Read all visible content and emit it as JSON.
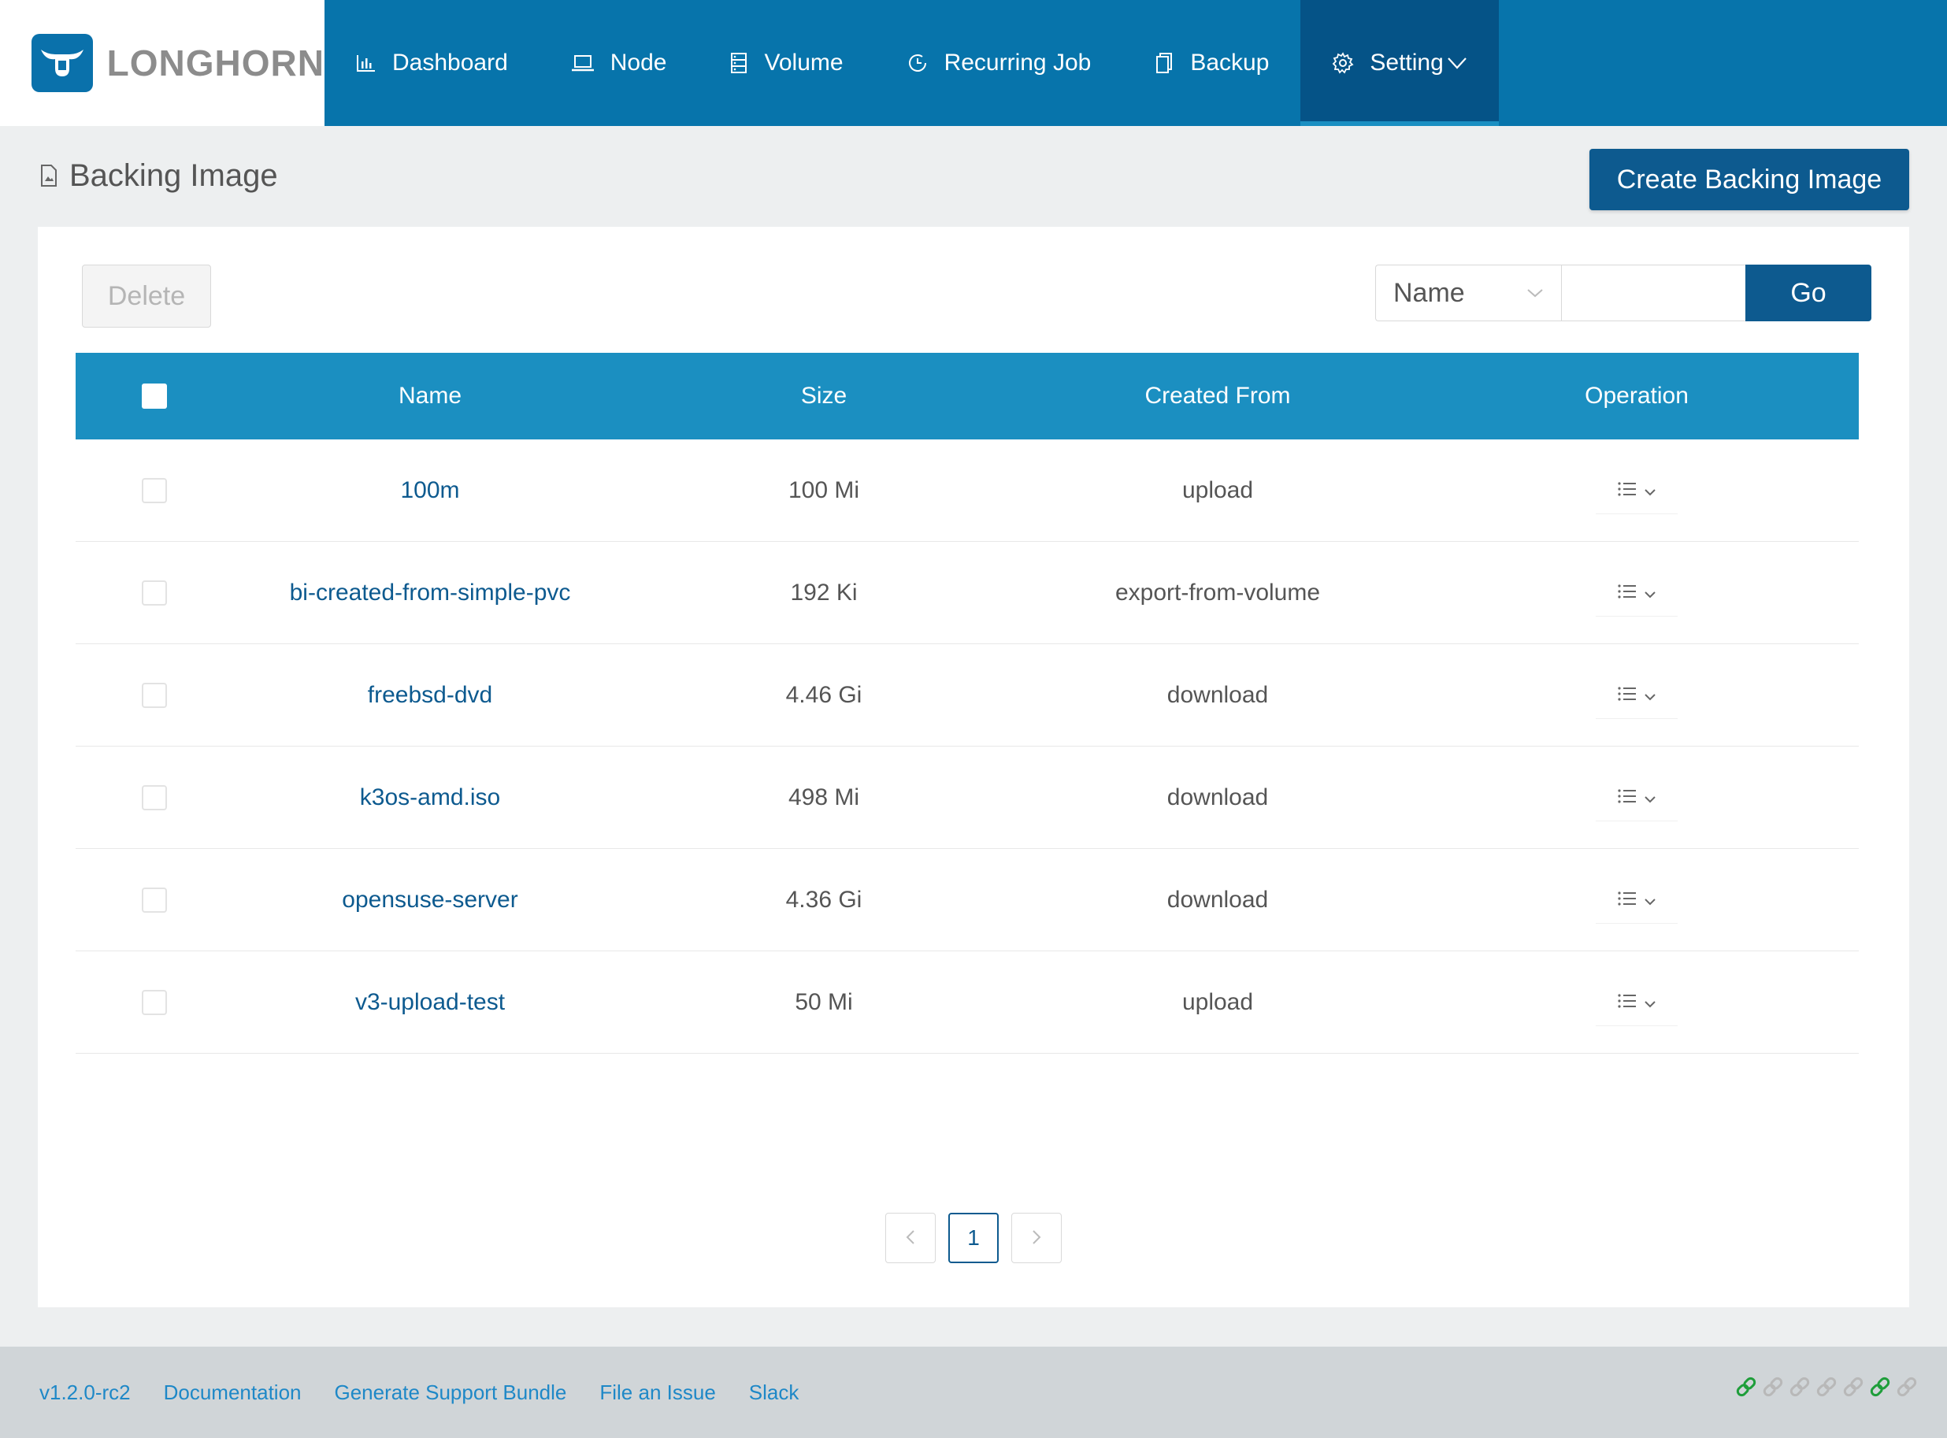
{
  "brand": {
    "name": "LONGHORN"
  },
  "nav": {
    "items": [
      {
        "label": "Dashboard",
        "icon": "bar-chart-icon"
      },
      {
        "label": "Node",
        "icon": "laptop-icon"
      },
      {
        "label": "Volume",
        "icon": "database-icon"
      },
      {
        "label": "Recurring Job",
        "icon": "clock-icon"
      },
      {
        "label": "Backup",
        "icon": "copy-icon"
      },
      {
        "label": "Setting",
        "icon": "gear-icon",
        "active": true
      }
    ]
  },
  "page": {
    "title": "Backing Image",
    "create_label": "Create Backing Image"
  },
  "toolbar": {
    "delete_label": "Delete",
    "search_field": "Name",
    "search_value": "",
    "go_label": "Go"
  },
  "table": {
    "headers": {
      "name": "Name",
      "size": "Size",
      "created_from": "Created From",
      "operation": "Operation"
    },
    "rows": [
      {
        "name": "100m",
        "size": "100 Mi",
        "created_from": "upload"
      },
      {
        "name": "bi-created-from-simple-pvc",
        "size": "192 Ki",
        "created_from": "export-from-volume"
      },
      {
        "name": "freebsd-dvd",
        "size": "4.46 Gi",
        "created_from": "download"
      },
      {
        "name": "k3os-amd.iso",
        "size": "498 Mi",
        "created_from": "download"
      },
      {
        "name": "opensuse-server",
        "size": "4.36 Gi",
        "created_from": "download"
      },
      {
        "name": "v3-upload-test",
        "size": "50 Mi",
        "created_from": "upload"
      }
    ]
  },
  "pagination": {
    "current_page": "1"
  },
  "footer": {
    "version": "v1.2.0-rc2",
    "links": [
      "Documentation",
      "Generate Support Bundle",
      "File an Issue",
      "Slack"
    ]
  },
  "connection_status": [
    "green",
    "gray",
    "gray",
    "gray",
    "gray",
    "green",
    "gray"
  ],
  "colors": {
    "header_bg": "#0774ab",
    "active_nav_bg": "#055387",
    "table_header_bg": "#1b8fc1",
    "primary_button": "#0d5a8f",
    "link": "#1e88c7",
    "status_green": "#1e9e3a",
    "status_gray": "#b8b8b8"
  }
}
